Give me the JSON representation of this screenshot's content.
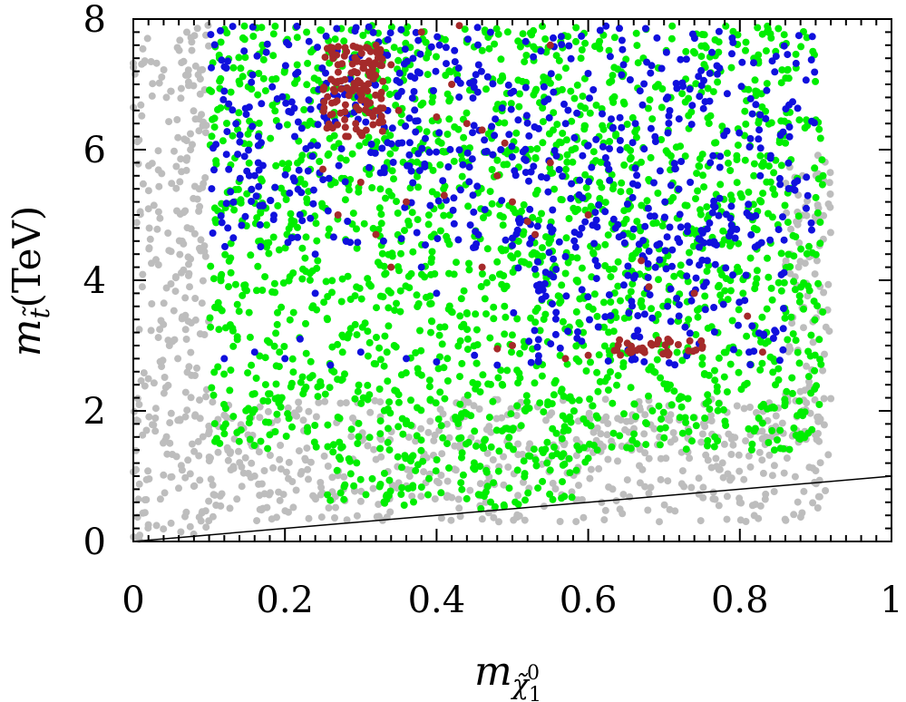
{
  "chart_data": {
    "type": "scatter",
    "xlabel": "m_{χ̃⁰₁}",
    "ylabel": "m_{t̃}(TeV)",
    "xlim": [
      0,
      1
    ],
    "ylim": [
      0,
      8
    ],
    "x_ticks": [
      0,
      0.2,
      0.4,
      0.6,
      0.8,
      1
    ],
    "x_tick_labels": [
      "0",
      "0.2",
      "0.4",
      "0.6",
      "0.8",
      "1"
    ],
    "y_ticks": [
      0,
      2,
      4,
      6,
      8
    ],
    "y_tick_labels": [
      "0",
      "2",
      "4",
      "6",
      "8"
    ],
    "grid": false,
    "legend": "none",
    "colors": {
      "grey": "#bdbdbd",
      "green": "#00ee00",
      "blue": "#1010dd",
      "brown": "#a52a2a"
    },
    "series": [
      {
        "color": "grey",
        "regions": [
          {
            "x": [
              0.0,
              0.1
            ],
            "y": [
              0.02,
              7.95
            ]
          },
          {
            "x": [
              0.1,
              0.92
            ],
            "y": [
              0.3,
              2.2
            ]
          },
          {
            "x": [
              0.86,
              0.92
            ],
            "y": [
              1.5,
              6.0
            ]
          }
        ]
      },
      {
        "color": "green",
        "regions": [
          {
            "x": [
              0.1,
              0.91
            ],
            "y": [
              1.4,
              7.9
            ]
          },
          {
            "x": [
              0.25,
              0.6
            ],
            "y": [
              0.5,
              1.5
            ]
          }
        ]
      },
      {
        "color": "blue",
        "regions": [
          {
            "x": [
              0.1,
              0.9
            ],
            "y": [
              4.5,
              7.9
            ]
          },
          {
            "x": [
              0.5,
              0.86
            ],
            "y": [
              2.7,
              5.0
            ]
          }
        ],
        "points": [
          [
            0.12,
            2.8
          ],
          [
            0.16,
            2.9
          ],
          [
            0.2,
            2.8
          ],
          [
            0.26,
            2.7
          ],
          [
            0.3,
            2.9
          ],
          [
            0.36,
            2.8
          ],
          [
            0.4,
            2.75
          ],
          [
            0.45,
            2.85
          ],
          [
            0.48,
            2.7
          ],
          [
            0.22,
            3.1
          ],
          [
            0.24,
            4.4
          ],
          [
            0.33,
            4.6
          ],
          [
            0.38,
            4.2
          ],
          [
            0.4,
            3.8
          ],
          [
            0.24,
            3.8
          ]
        ]
      },
      {
        "color": "brown",
        "regions": [
          {
            "x": [
              0.25,
              0.33
            ],
            "y": [
              6.2,
              7.6
            ]
          },
          {
            "x": [
              0.63,
              0.76
            ],
            "y": [
              2.85,
              3.1
            ]
          }
        ],
        "points": [
          [
            0.34,
            7.3
          ],
          [
            0.38,
            7.8
          ],
          [
            0.43,
            7.9
          ],
          [
            0.35,
            6.6
          ],
          [
            0.42,
            7.0
          ],
          [
            0.4,
            6.5
          ],
          [
            0.44,
            6.4
          ],
          [
            0.46,
            6.3
          ],
          [
            0.49,
            6.1
          ],
          [
            0.5,
            5.2
          ],
          [
            0.52,
            4.9
          ],
          [
            0.53,
            4.7
          ],
          [
            0.46,
            4.2
          ],
          [
            0.5,
            3.0
          ],
          [
            0.48,
            2.95
          ],
          [
            0.55,
            5.8
          ],
          [
            0.6,
            5.0
          ],
          [
            0.67,
            4.3
          ],
          [
            0.68,
            3.9
          ],
          [
            0.74,
            3.8
          ],
          [
            0.81,
            3.45
          ],
          [
            0.83,
            2.9
          ],
          [
            0.6,
            2.85
          ],
          [
            0.57,
            2.8
          ],
          [
            0.25,
            5.7
          ],
          [
            0.27,
            5.0
          ],
          [
            0.3,
            5.5
          ],
          [
            0.32,
            4.7
          ],
          [
            0.34,
            4.2
          ],
          [
            0.27,
            7.3
          ],
          [
            0.55,
            7.6
          ],
          [
            0.48,
            5.6
          ],
          [
            0.41,
            5.3
          ],
          [
            0.36,
            5.2
          ]
        ]
      }
    ],
    "reference_line": {
      "from": [
        0,
        0
      ],
      "to": [
        1,
        1.0
      ]
    }
  }
}
